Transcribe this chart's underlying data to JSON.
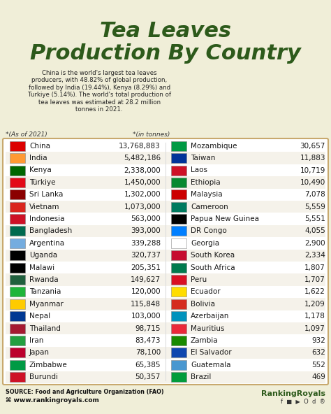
{
  "title_line1": "Tea Leaves",
  "title_line2": "Production By Country",
  "subtitle": "China is the world's largest tea leaves\nproducers, with 48.82% of global production,\nfollowed by India (19.44%), Kenya (8.29%) and\nTurkiye (5.14%). The world's total production of\ntea leaves was estimated at 28.2 million\ntonnes in 2021.",
  "note_left": "*(As of 2021)",
  "note_right": "*(in tonnes)",
  "source": "SOURCE: Food and Agriculture Organization (FAO)",
  "website": "www.rankingroyals.com",
  "bg_color": "#f0eed8",
  "title_color": "#2d5a1b",
  "table_bg": "#ffffff",
  "border_color": "#c8a96e",
  "text_color": "#1a1a1a",
  "left_data": [
    {
      "country": "China",
      "value": "13,768,883"
    },
    {
      "country": "India",
      "value": "5,482,186"
    },
    {
      "country": "Kenya",
      "value": "2,338,000"
    },
    {
      "country": "Türkiye",
      "value": "1,450,000"
    },
    {
      "country": "Sri Lanka",
      "value": "1,302,000"
    },
    {
      "country": "Vietnam",
      "value": "1,073,000"
    },
    {
      "country": "Indonesia",
      "value": "563,000"
    },
    {
      "country": "Bangladesh",
      "value": "393,000"
    },
    {
      "country": "Argentina",
      "value": "339,288"
    },
    {
      "country": "Uganda",
      "value": "320,737"
    },
    {
      "country": "Malawi",
      "value": "205,351"
    },
    {
      "country": "Rwanda",
      "value": "149,627"
    },
    {
      "country": "Tanzania",
      "value": "120,000"
    },
    {
      "country": "Myanmar",
      "value": "115,848"
    },
    {
      "country": "Nepal",
      "value": "103,000"
    },
    {
      "country": "Thailand",
      "value": "98,715"
    },
    {
      "country": "Iran",
      "value": "83,473"
    },
    {
      "country": "Japan",
      "value": "78,100"
    },
    {
      "country": "Zimbabwe",
      "value": "65,385"
    },
    {
      "country": "Burundi",
      "value": "50,357"
    }
  ],
  "right_data": [
    {
      "country": "Mozambique",
      "value": "30,657"
    },
    {
      "country": "Taiwan",
      "value": "11,883"
    },
    {
      "country": "Laos",
      "value": "10,719"
    },
    {
      "country": "Ethiopia",
      "value": "10,490"
    },
    {
      "country": "Malaysia",
      "value": "7,078"
    },
    {
      "country": "Cameroon",
      "value": "5,559"
    },
    {
      "country": "Papua New Guinea",
      "value": "5,551"
    },
    {
      "country": "DR Congo",
      "value": "4,055"
    },
    {
      "country": "Georgia",
      "value": "2,900"
    },
    {
      "country": "South Korea",
      "value": "2,334"
    },
    {
      "country": "South Africa",
      "value": "1,807"
    },
    {
      "country": "Peru",
      "value": "1,707"
    },
    {
      "country": "Ecuador",
      "value": "1,622"
    },
    {
      "country": "Bolivia",
      "value": "1,209"
    },
    {
      "country": "Azerbaijan",
      "value": "1,178"
    },
    {
      "country": "Mauritius",
      "value": "1,097"
    },
    {
      "country": "Zambia",
      "value": "932"
    },
    {
      "country": "El Salvador",
      "value": "632"
    },
    {
      "country": "Guatemala",
      "value": "552"
    },
    {
      "country": "Brazil",
      "value": "469"
    }
  ],
  "left_flags": [
    "#dc0000",
    "#ff9933",
    "#006600",
    "#e30a17",
    "#8B0000",
    "#da251d",
    "#ce1126",
    "#006a4e",
    "#74acdf",
    "#000000",
    "#000000",
    "#20603d",
    "#1eb53a",
    "#fecb00",
    "#003893",
    "#a51931",
    "#239f40",
    "#bc002d",
    "#009a44",
    "#ce1126"
  ],
  "right_flags": [
    "#009a44",
    "#003399",
    "#ce1126",
    "#078930",
    "#cc0001",
    "#007a5e",
    "#000000",
    "#007fff",
    "#ffffff",
    "#c60c30",
    "#007a4d",
    "#d91023",
    "#ffdd00",
    "#d52b1e",
    "#0092bc",
    "#ea2839",
    "#198a00",
    "#0f47af",
    "#4997d0",
    "#009c3b"
  ]
}
